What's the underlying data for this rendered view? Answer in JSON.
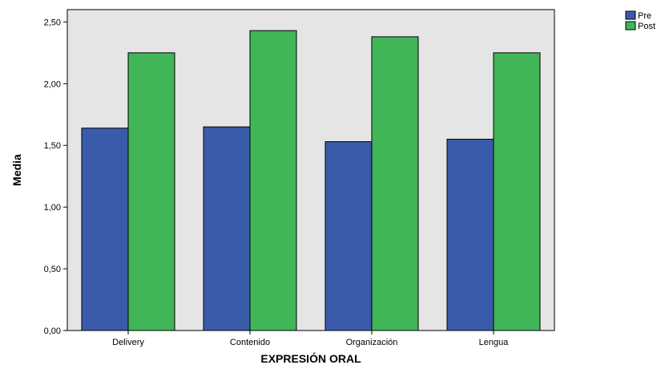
{
  "chart_data": {
    "type": "bar",
    "title": "",
    "xlabel": "EXPRESIÓN ORAL",
    "ylabel": "Media",
    "categories": [
      "Delivery",
      "Contenido",
      "Organización",
      "Lengua"
    ],
    "series": [
      {
        "name": "Pre",
        "color": "#3A5BA9",
        "values": [
          1.64,
          1.65,
          1.53,
          1.55
        ]
      },
      {
        "name": "Post",
        "color": "#40B658",
        "values": [
          2.25,
          2.43,
          2.38,
          2.25
        ]
      }
    ],
    "ylim": [
      0,
      2.6
    ],
    "yticks": [
      "0,00",
      "0,50",
      "1,00",
      "1,50",
      "2,00",
      "2,50"
    ],
    "ytick_values": [
      0,
      0.5,
      1.0,
      1.5,
      2.0,
      2.5
    ],
    "grid": false,
    "legend": "top-right",
    "plot_background": "#E5E5E5"
  }
}
